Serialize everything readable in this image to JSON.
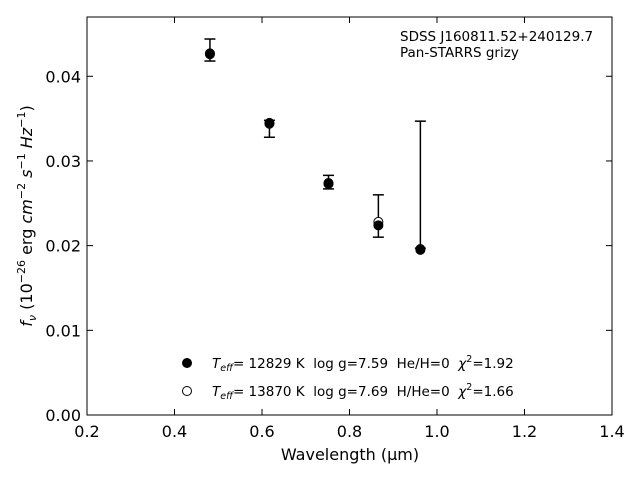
{
  "chart_data": {
    "type": "scatter",
    "xlabel": "Wavelength (μm)",
    "ylabel": "f_ν (10^-26 erg cm^-2 s^-1 Hz^-1)",
    "xlim": [
      0.2,
      1.4
    ],
    "ylim": [
      0.0,
      0.047
    ],
    "x_ticks": [
      "0.2",
      "0.4",
      "0.6",
      "0.8",
      "1.0",
      "1.2",
      "1.4"
    ],
    "y_ticks": [
      "0.00",
      "0.01",
      "0.02",
      "0.03",
      "0.04"
    ],
    "grid": false,
    "annotation": {
      "line1": "SDSS J160811.52+240129.7",
      "line2": "Pan-STARRS grizy"
    },
    "observed": {
      "x": [
        0.481,
        0.617,
        0.752,
        0.866,
        0.962
      ],
      "y": [
        0.0431,
        0.0338,
        0.0275,
        0.0236,
        0.0272
      ],
      "yerr_low": [
        0.0013,
        0.001,
        0.0008,
        0.0026,
        0.0075
      ],
      "yerr_high": [
        0.0013,
        0.001,
        0.0008,
        0.0024,
        0.0075
      ]
    },
    "series": [
      {
        "name": "T_eff= 12829 K  log g=7.59  He/H=0  χ²=1.92",
        "marker": "filled-circle",
        "x": [
          0.481,
          0.617,
          0.752,
          0.866,
          0.962
        ],
        "y": [
          0.0427,
          0.0345,
          0.0274,
          0.0224,
          0.0195
        ]
      },
      {
        "name": "T_eff= 13870 K  log g=7.69  H/He=0  χ²=1.66",
        "marker": "open-circle",
        "x": [
          0.481,
          0.617,
          0.752,
          0.866,
          0.962
        ],
        "y": [
          0.0426,
          0.0344,
          0.0273,
          0.0228,
          0.0196
        ]
      }
    ],
    "legend": {
      "placement": "lower-center",
      "entries": [
        {
          "teff_label": "T",
          "teff_sub": "eff",
          "text": "= 12829 K  log g=7.59  He/H=0  ",
          "chi": "χ",
          "chi_sup": "2",
          "chi_val": "=1.92"
        },
        {
          "teff_label": "T",
          "teff_sub": "eff",
          "text": "= 13870 K  log g=7.69  H/He=0  ",
          "chi": "χ",
          "chi_sup": "2",
          "chi_val": "=1.66"
        }
      ]
    },
    "ylabel_parts": {
      "f": "f",
      "nu": "ν",
      "open": " (10",
      "exp1": "−26",
      "erg": " erg ",
      "cm": "cm",
      "exp2": "−2",
      "s": " s",
      "exp3": "−1",
      "hz": " Hz",
      "exp4": "−1",
      "close": ")"
    }
  }
}
